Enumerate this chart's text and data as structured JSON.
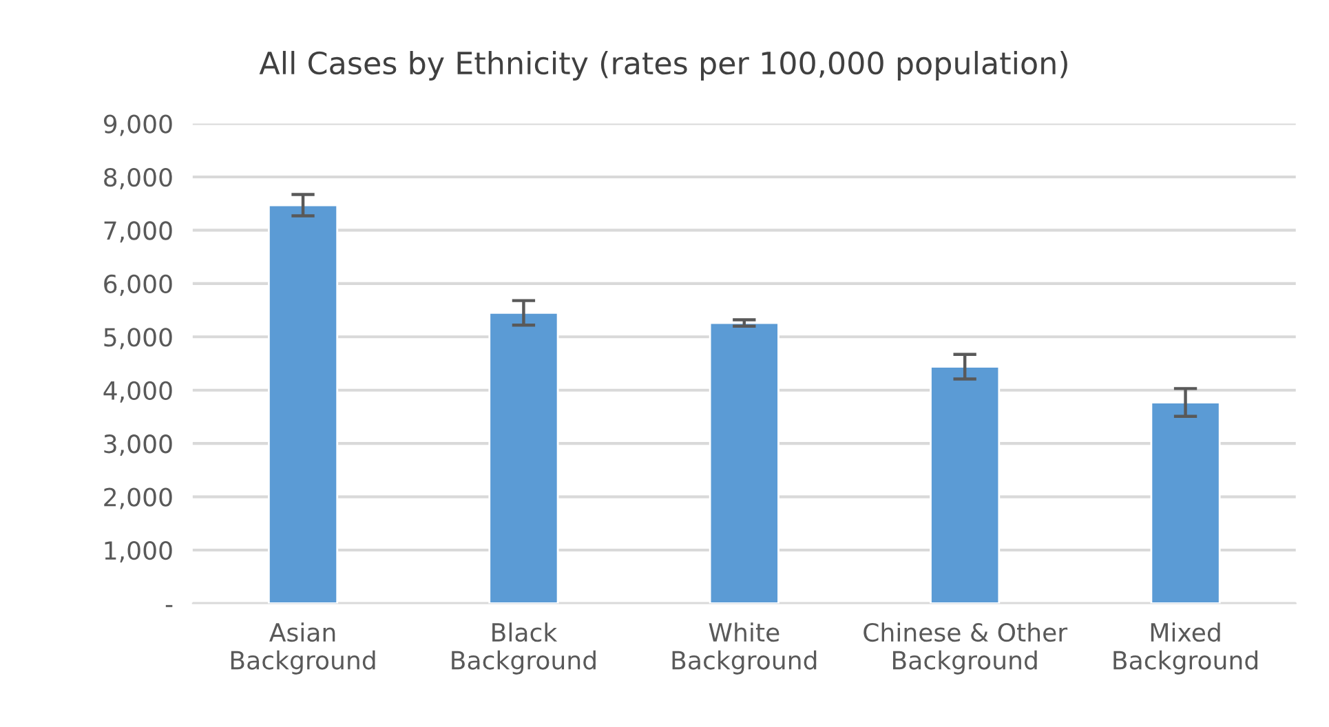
{
  "chart_data": {
    "type": "bar",
    "title": "All Cases by Ethnicity (rates per 100,000 population)",
    "categories": [
      "Asian\nBackground",
      "Black\nBackground",
      "White\nBackground",
      "Chinese & Other\nBackground",
      "Mixed\nBackground"
    ],
    "values": [
      7470,
      5450,
      5260,
      4440,
      3770
    ],
    "errors": [
      200,
      230,
      60,
      230,
      260
    ],
    "color": "#5b9bd5",
    "ylim": [
      0,
      9000
    ],
    "yticks": [
      {
        "value": 0,
        "label": "-"
      },
      {
        "value": 1000,
        "label": "1,000"
      },
      {
        "value": 2000,
        "label": "2,000"
      },
      {
        "value": 3000,
        "label": "3,000"
      },
      {
        "value": 4000,
        "label": "4,000"
      },
      {
        "value": 5000,
        "label": "5,000"
      },
      {
        "value": 6000,
        "label": "6,000"
      },
      {
        "value": 7000,
        "label": "7,000"
      },
      {
        "value": 8000,
        "label": "8,000"
      },
      {
        "value": 9000,
        "label": "9,000"
      }
    ],
    "grid": "y"
  }
}
